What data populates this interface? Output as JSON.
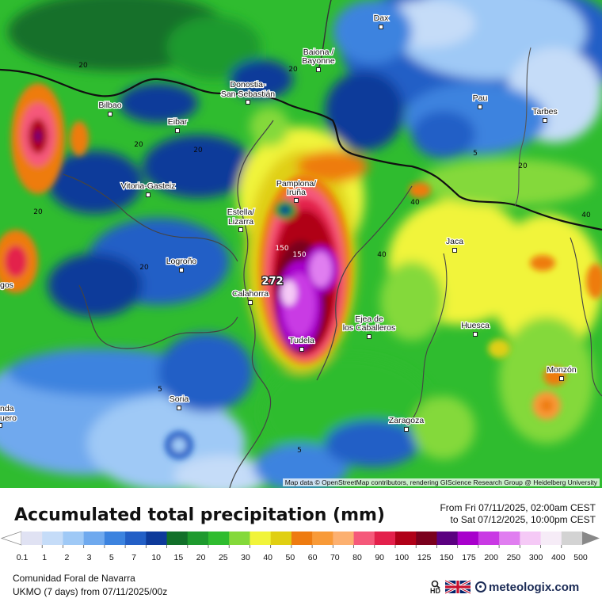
{
  "map": {
    "max_marker": "272",
    "attribution": "Map data © OpenStreetMap contributors, rendering GIScience Research Group @ Heidelberg University",
    "cities": [
      {
        "name": "Dax"
      },
      {
        "name": "Baiona /"
      },
      {
        "name": "Bayonne"
      },
      {
        "name": "Donostia-"
      },
      {
        "name": "San Sebastián"
      },
      {
        "name": "Bilbao"
      },
      {
        "name": "Eibar"
      },
      {
        "name": "Pau"
      },
      {
        "name": "Tarbes"
      },
      {
        "name": "Vitoria-Gasteiz"
      },
      {
        "name": "Pamplona/"
      },
      {
        "name": "Iruña"
      },
      {
        "name": "Estella/"
      },
      {
        "name": "Lizarra"
      },
      {
        "name": "Jaca"
      },
      {
        "name": "Logroño"
      },
      {
        "name": "Calahorra"
      },
      {
        "name": "Ejea de"
      },
      {
        "name": "los Caballeros"
      },
      {
        "name": "Huesca"
      },
      {
        "name": "Tudela"
      },
      {
        "name": "Monzón"
      },
      {
        "name": "Soria"
      },
      {
        "name": "Zaragoza"
      },
      {
        "name": "gos"
      },
      {
        "name": "nda"
      },
      {
        "name": "uero"
      }
    ],
    "contour_labels": [
      "20",
      "20",
      "20",
      "20",
      "20",
      "20",
      "5",
      "20",
      "40",
      "40",
      "40",
      "150",
      "150",
      "5",
      "5"
    ]
  },
  "legend": {
    "title": "Accumulated total precipitation (mm)",
    "period_from": "From Fri 07/11/2025, 02:00am CEST",
    "period_to": "to Sat 07/12/2025, 10:00pm CEST",
    "labels": [
      "0.1",
      "1",
      "2",
      "3",
      "5",
      "7",
      "10",
      "15",
      "20",
      "25",
      "30",
      "40",
      "50",
      "60",
      "70",
      "80",
      "90",
      "100",
      "125",
      "150",
      "175",
      "200",
      "250",
      "300",
      "400",
      "500"
    ],
    "colors": [
      "#e0e2f3",
      "#c5dcf8",
      "#9fc9f6",
      "#6fa9ee",
      "#3c83df",
      "#235fc6",
      "#0e3a9a",
      "#12702a",
      "#1e9a2e",
      "#2fbc2f",
      "#84d93a",
      "#f1f43b",
      "#e0cf12",
      "#ee7b10",
      "#f89a38",
      "#fcb070",
      "#f5597a",
      "#e3204b",
      "#b00018",
      "#7a001d",
      "#5b0080",
      "#a800cc",
      "#c93ae4",
      "#e07ef0",
      "#f5c9f6",
      "#f6ecf7",
      "#d3d3d3"
    ]
  },
  "footer": {
    "region": "Comunidad Foral de Navarra",
    "model": "UKMO (7 days) from 07/11/2025/00z",
    "hd_label": "HD",
    "brand": "meteologix.com"
  }
}
